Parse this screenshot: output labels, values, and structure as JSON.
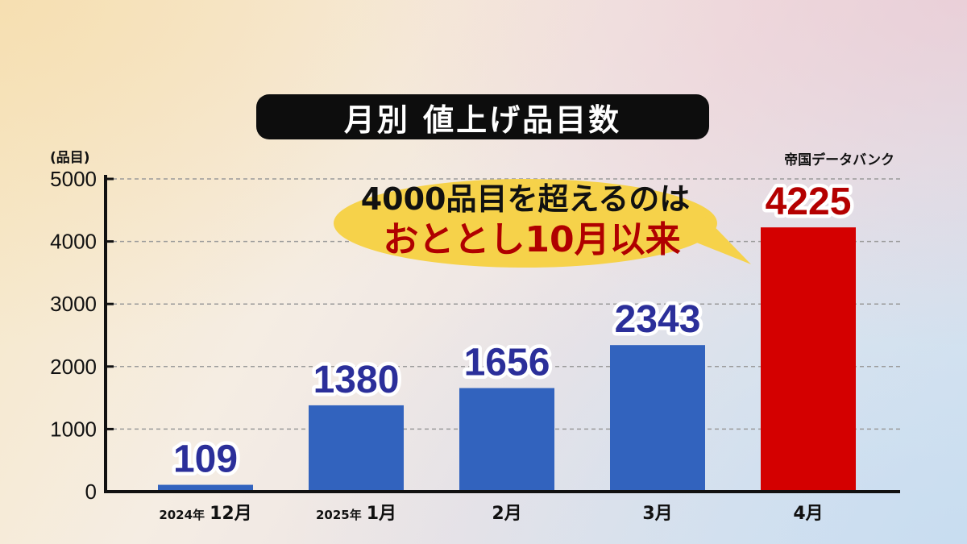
{
  "title": "月別 値上げ品目数",
  "unit_label": "(品目)",
  "source": "帝国データバンク",
  "callout": {
    "line1": "4000品目を超えるのは",
    "line2": "おととし10月以来"
  },
  "colors": {
    "bar_blue": "#3263be",
    "bar_red": "#d40000",
    "label_blue": "#2b2f9a",
    "label_red": "#b40000",
    "callout_fill": "#f6d24a"
  },
  "chart_data": {
    "type": "bar",
    "categories": [
      {
        "year_prefix": "2024年",
        "month": "12月"
      },
      {
        "year_prefix": "2025年",
        "month": "1月"
      },
      {
        "year_prefix": "",
        "month": "2月"
      },
      {
        "year_prefix": "",
        "month": "3月"
      },
      {
        "year_prefix": "",
        "month": "4月"
      }
    ],
    "values": [
      109,
      1380,
      1656,
      2343,
      4225
    ],
    "highlight_index": 4,
    "ylim": [
      0,
      5000
    ],
    "yticks": [
      0,
      1000,
      2000,
      3000,
      4000,
      5000
    ],
    "ylabel": "(品目)",
    "grid": true
  }
}
